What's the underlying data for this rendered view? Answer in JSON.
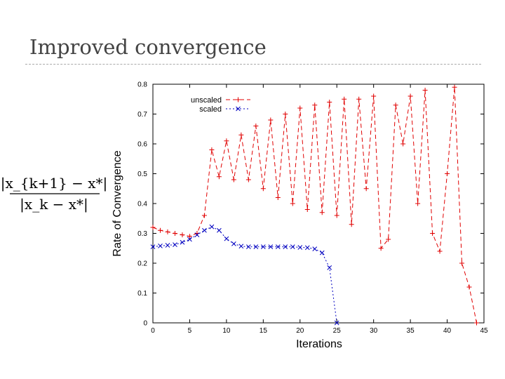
{
  "slide": {
    "title": "Improved convergence"
  },
  "formula": {
    "numerator": "|x_{k+1} − x*|",
    "denominator": "|x_k − x*|"
  },
  "chart_data": {
    "type": "line",
    "title": "",
    "xlabel": "Iterations",
    "ylabel": "Rate of Convergence",
    "xlim": [
      0,
      45
    ],
    "ylim": [
      0,
      0.8
    ],
    "xticks": [
      0,
      5,
      10,
      15,
      20,
      25,
      30,
      35,
      40,
      45
    ],
    "yticks": [
      0,
      0.1,
      0.2,
      0.3,
      0.4,
      0.5,
      0.6,
      0.7,
      0.8
    ],
    "legend_position": "top-left",
    "series": [
      {
        "name": "unscaled",
        "color": "#e00000",
        "marker": "+",
        "x": [
          0,
          1,
          2,
          3,
          4,
          5,
          6,
          7,
          8,
          9,
          10,
          11,
          12,
          13,
          14,
          15,
          16,
          17,
          18,
          19,
          20,
          21,
          22,
          23,
          24,
          25,
          26,
          27,
          28,
          29,
          30,
          31,
          32,
          33,
          34,
          35,
          36,
          37,
          38,
          39,
          40,
          41,
          42,
          43,
          44
        ],
        "y": [
          0.32,
          0.31,
          0.305,
          0.3,
          0.295,
          0.29,
          0.3,
          0.36,
          0.58,
          0.49,
          0.61,
          0.48,
          0.63,
          0.48,
          0.66,
          0.45,
          0.68,
          0.42,
          0.7,
          0.4,
          0.72,
          0.38,
          0.73,
          0.37,
          0.74,
          0.36,
          0.75,
          0.33,
          0.75,
          0.45,
          0.76,
          0.25,
          0.28,
          0.73,
          0.6,
          0.76,
          0.4,
          0.78,
          0.3,
          0.24,
          0.5,
          0.79,
          0.2,
          0.12,
          0
        ]
      },
      {
        "name": "scaled",
        "color": "#0000c0",
        "marker": "x",
        "x": [
          0,
          1,
          2,
          3,
          4,
          5,
          6,
          7,
          8,
          9,
          10,
          11,
          12,
          13,
          14,
          15,
          16,
          17,
          18,
          19,
          20,
          21,
          22,
          23,
          24,
          25
        ],
        "y": [
          0.255,
          0.258,
          0.26,
          0.262,
          0.27,
          0.28,
          0.295,
          0.31,
          0.322,
          0.31,
          0.282,
          0.265,
          0.257,
          0.255,
          0.255,
          0.255,
          0.255,
          0.255,
          0.255,
          0.255,
          0.253,
          0.252,
          0.248,
          0.235,
          0.185,
          0
        ]
      }
    ]
  }
}
